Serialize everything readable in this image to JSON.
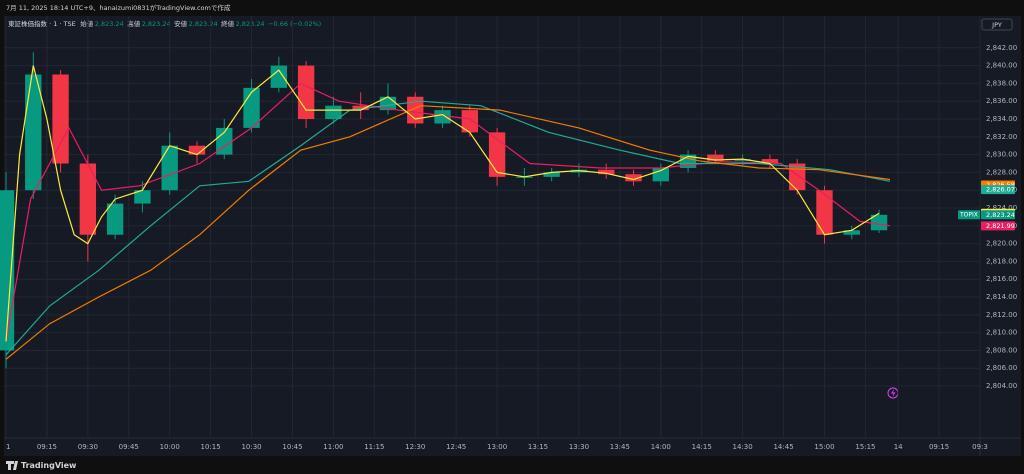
{
  "header": {
    "text": "7月 11, 2025 18:14 UTC+9、hanaizumi0831がTradingView.comで作成"
  },
  "legend": {
    "symbol": "東証株価指数 · 1 · TSE",
    "items": [
      {
        "label": "始値",
        "value": "2,823.24"
      },
      {
        "label": "高値",
        "value": "2,823.24"
      },
      {
        "label": "安値",
        "value": "2,823.24"
      },
      {
        "label": "終値",
        "value": "2,823.24"
      }
    ],
    "change": "−0.66 (−0.02%)"
  },
  "currency": "JPY",
  "symbol_tag": "TOPIX",
  "footer": {
    "brand": "TradingView"
  },
  "chart_data": {
    "type": "candlestick",
    "x": [
      0,
      10,
      20,
      30,
      40,
      50,
      60,
      70,
      80,
      90,
      100,
      110,
      120,
      130,
      140,
      150,
      160,
      170,
      180,
      190,
      200,
      210,
      220,
      230,
      240,
      250,
      260,
      270,
      280,
      290,
      300,
      310,
      320
    ],
    "open": [
      2808,
      2826,
      2839,
      2829,
      2821,
      2824.5,
      2826,
      2831,
      2830,
      2833,
      2837.5,
      2840,
      2834,
      2835.5,
      2835,
      2836.5,
      2833.5,
      2835,
      2832.5,
      2827.5,
      2827.5,
      2828,
      2828.3,
      2827.8,
      2827,
      2828.5,
      2830,
      2829.3,
      2829.5,
      2829,
      2826,
      2821,
      2821.5
    ],
    "high": [
      2828,
      2841.5,
      2839.5,
      2830,
      2825.5,
      2827,
      2832.5,
      2831.5,
      2834,
      2838.5,
      2841,
      2840.5,
      2836.5,
      2837,
      2838,
      2837,
      2835.5,
      2835.5,
      2833,
      2828.5,
      2828.5,
      2829,
      2829,
      2828.3,
      2829,
      2830.5,
      2830.5,
      2830,
      2830,
      2829.5,
      2826.5,
      2822,
      2823.8
    ],
    "low": [
      2806,
      2825,
      2828,
      2818,
      2820.5,
      2823.5,
      2825.5,
      2829,
      2829.5,
      2832.5,
      2837,
      2833,
      2833.5,
      2834,
      2834.5,
      2833,
      2833,
      2832,
      2826.5,
      2826.5,
      2827,
      2827.5,
      2827.3,
      2826.5,
      2826.5,
      2828,
      2829,
      2828.8,
      2828.5,
      2825.5,
      2820,
      2820.5,
      2821.2
    ],
    "close": [
      2826,
      2839,
      2829,
      2821,
      2824.5,
      2826,
      2831,
      2830,
      2833,
      2837.5,
      2840,
      2834,
      2835.5,
      2835,
      2836.5,
      2833.5,
      2835,
      2832.5,
      2827.5,
      2827.5,
      2828,
      2828.3,
      2827.8,
      2827,
      2828.5,
      2830,
      2829.3,
      2829.5,
      2829,
      2826,
      2821,
      2821.5,
      2823.24
    ],
    "up_color": "#089981",
    "down_color": "#f23645",
    "lines": [
      {
        "color": "#e91e63",
        "x": [
          0,
          9,
          23,
          35,
          49,
          71,
          90,
          108,
          122,
          144,
          170,
          192,
          218,
          240,
          262,
          284,
          298,
          313,
          324
        ],
        "values": [
          2809,
          2825,
          2833,
          2826,
          2826.5,
          2829,
          2833,
          2838,
          2836,
          2835,
          2834,
          2829,
          2828.5,
          2828.5,
          2829.2,
          2829,
          2826,
          2822.5,
          2822
        ]
      },
      {
        "color": "#22ab94",
        "x": [
          0,
          16,
          34,
          53,
          71,
          89,
          108,
          126,
          152,
          174,
          199,
          225,
          247,
          276,
          302,
          324
        ],
        "values": [
          2807.5,
          2813,
          2817,
          2822,
          2826.5,
          2827,
          2831,
          2835,
          2836,
          2835.5,
          2832.5,
          2830.5,
          2829,
          2829,
          2828.3,
          2827
        ]
      },
      {
        "color": "#f57c00",
        "x": [
          0,
          16,
          34,
          53,
          71,
          89,
          108,
          126,
          152,
          181,
          210,
          236,
          254,
          276,
          298,
          324
        ],
        "values": [
          2807,
          2811,
          2814,
          2817,
          2821,
          2826,
          2830.5,
          2832,
          2835.5,
          2835,
          2833,
          2830.5,
          2829.3,
          2828.5,
          2828.3,
          2827.2
        ]
      },
      {
        "color": "#ffeb3b",
        "x": [
          0,
          5,
          10,
          15,
          20,
          25,
          30,
          35,
          40,
          50,
          60,
          70,
          80,
          90,
          100,
          110,
          120,
          130,
          140,
          150,
          160,
          170,
          180,
          190,
          200,
          210,
          220,
          230,
          240,
          250,
          260,
          270,
          280,
          290,
          300,
          310,
          320
        ],
        "values": [
          2809,
          2830,
          2840,
          2834,
          2826,
          2821,
          2820,
          2823,
          2825,
          2826,
          2831,
          2830,
          2832.5,
          2837,
          2839.5,
          2835,
          2835,
          2835,
          2836.5,
          2834,
          2834.5,
          2832.5,
          2828,
          2827.5,
          2828,
          2828.2,
          2827.9,
          2827.2,
          2828.2,
          2829.8,
          2829.4,
          2829.5,
          2829,
          2826,
          2821,
          2821.5,
          2823.41
        ]
      }
    ],
    "last_labels": [
      {
        "value": 2826.58,
        "label": "2,826.58",
        "color": "#f57c00"
      },
      {
        "value": 2826.07,
        "label": "2,826.07",
        "color": "#22ab94"
      },
      {
        "value": 2823.41,
        "label": "2,823.41",
        "color": "#ffeb3b"
      },
      {
        "value": 2823.24,
        "label": "2,823.24",
        "color": "#089981"
      },
      {
        "value": 2821.99,
        "label": "2,821.99",
        "color": "#e91e63"
      }
    ],
    "xlim": [
      0,
      357
    ],
    "xticks": [
      {
        "value": 0,
        "label": "1"
      },
      {
        "value": 15,
        "label": "09:15"
      },
      {
        "value": 30,
        "label": "09:30"
      },
      {
        "value": 45,
        "label": "09:45"
      },
      {
        "value": 60,
        "label": "10:00"
      },
      {
        "value": 75,
        "label": "10:15"
      },
      {
        "value": 90,
        "label": "10:30"
      },
      {
        "value": 105,
        "label": "10:45"
      },
      {
        "value": 120,
        "label": "11:00"
      },
      {
        "value": 135,
        "label": "11:15"
      },
      {
        "value": 150,
        "label": "12:30"
      },
      {
        "value": 165,
        "label": "12:45"
      },
      {
        "value": 180,
        "label": "13:00"
      },
      {
        "value": 195,
        "label": "13:15"
      },
      {
        "value": 210,
        "label": "13:30"
      },
      {
        "value": 225,
        "label": "13:45"
      },
      {
        "value": 240,
        "label": "14:00"
      },
      {
        "value": 255,
        "label": "14:15"
      },
      {
        "value": 270,
        "label": "14:30"
      },
      {
        "value": 285,
        "label": "14:45"
      },
      {
        "value": 300,
        "label": "15:00"
      },
      {
        "value": 315,
        "label": "15:15"
      },
      {
        "value": 327,
        "label": "14"
      },
      {
        "value": 342,
        "label": "09:15"
      },
      {
        "value": 357,
        "label": "09:3"
      }
    ],
    "ylim": [
      2798.5,
      2844
    ],
    "yticks": [
      {
        "value": 2804,
        "label": "2,804.00"
      },
      {
        "value": 2806,
        "label": "2,806.00"
      },
      {
        "value": 2808,
        "label": "2,808.00"
      },
      {
        "value": 2810,
        "label": "2,810.00"
      },
      {
        "value": 2812,
        "label": "2,812.00"
      },
      {
        "value": 2814,
        "label": "2,814.00"
      },
      {
        "value": 2816,
        "label": "2,816.00"
      },
      {
        "value": 2818,
        "label": "2,818.00"
      },
      {
        "value": 2820,
        "label": "2,820.00"
      },
      {
        "value": 2822,
        "label": "2,822.00"
      },
      {
        "value": 2824,
        "label": "2,824.00"
      },
      {
        "value": 2826,
        "label": "2,826.00"
      },
      {
        "value": 2828,
        "label": "2,828.00"
      },
      {
        "value": 2830,
        "label": "2,830.00"
      },
      {
        "value": 2832,
        "label": "2,832.00"
      },
      {
        "value": 2834,
        "label": "2,834.00"
      },
      {
        "value": 2836,
        "label": "2,836.00"
      },
      {
        "value": 2838,
        "label": "2,838.00"
      },
      {
        "value": 2840,
        "label": "2,840.00"
      },
      {
        "value": 2842,
        "label": "2,842.00"
      }
    ],
    "grid": true
  }
}
